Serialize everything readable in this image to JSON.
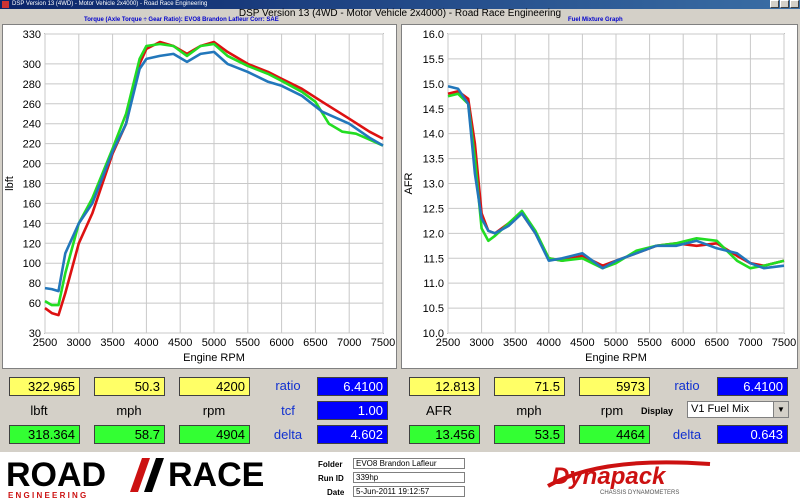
{
  "window": {
    "titlebar": "DSP Version 13 (4WD) - Motor Vehicle 2x4000) - Road Race Engineering",
    "app_title": "DSP Version 13 (4WD - Motor Vehicle 2x4000) - Road Race Engineering"
  },
  "left_graph": {
    "subtitle": "Torque (Axle Torque ÷ Gear Ratio): EVO8 Brandon Lafleur    Corr: SAE",
    "ylabel": "lbft",
    "xlabel": "Engine RPM",
    "y_ticks": [
      "330",
      "300",
      "280",
      "260",
      "240",
      "220",
      "200",
      "180",
      "160",
      "140",
      "120",
      "100",
      "80",
      "60",
      "30"
    ],
    "x_ticks": [
      "2500",
      "3000",
      "3500",
      "4000",
      "4500",
      "5000",
      "5500",
      "6000",
      "6500",
      "7000",
      "7500"
    ]
  },
  "right_graph": {
    "subtitle": "Fuel Mixture Graph",
    "ylabel": "AFR",
    "xlabel": "Engine RPM",
    "y_ticks": [
      "16.0",
      "15.5",
      "15.0",
      "14.5",
      "14.0",
      "13.5",
      "13.0",
      "12.5",
      "12.0",
      "11.5",
      "11.0",
      "10.5",
      "10.0"
    ],
    "x_ticks": [
      "2500",
      "3000",
      "3500",
      "4000",
      "4500",
      "5000",
      "5500",
      "6000",
      "6500",
      "7000",
      "7500"
    ]
  },
  "chart_data": [
    {
      "type": "line",
      "ylabel": "lbft",
      "xlabel": "Engine RPM",
      "xlim": [
        2500,
        7500
      ],
      "ylim": [
        30,
        330
      ],
      "grid": true,
      "series": [
        {
          "color": "#dd1111",
          "x": [
            2500,
            2600,
            2700,
            2800,
            3000,
            3200,
            3500,
            3700,
            3900,
            4000,
            4200,
            4400,
            4600,
            4800,
            5000,
            5200,
            5500,
            5800,
            6000,
            6300,
            6600,
            7000,
            7300,
            7500
          ],
          "y": [
            55,
            50,
            48,
            70,
            120,
            150,
            210,
            240,
            300,
            315,
            322,
            318,
            310,
            318,
            322,
            312,
            300,
            292,
            285,
            275,
            262,
            245,
            232,
            225
          ]
        },
        {
          "color": "#22dd22",
          "x": [
            2500,
            2600,
            2700,
            2800,
            3000,
            3200,
            3500,
            3700,
            3900,
            4000,
            4200,
            4400,
            4600,
            4800,
            5000,
            5200,
            5500,
            5800,
            6000,
            6300,
            6500,
            6700,
            6900,
            7100,
            7300,
            7500
          ],
          "y": [
            62,
            58,
            58,
            90,
            140,
            165,
            215,
            250,
            305,
            318,
            320,
            318,
            308,
            318,
            320,
            308,
            298,
            290,
            283,
            272,
            262,
            240,
            232,
            230,
            224,
            218
          ]
        },
        {
          "color": "#2277bb",
          "x": [
            2500,
            2600,
            2700,
            2800,
            3000,
            3200,
            3500,
            3700,
            3900,
            4000,
            4200,
            4400,
            4600,
            4800,
            5000,
            5200,
            5500,
            5800,
            6000,
            6300,
            6600,
            7000,
            7300,
            7500
          ],
          "y": [
            75,
            74,
            72,
            110,
            140,
            160,
            212,
            240,
            295,
            305,
            308,
            310,
            302,
            310,
            312,
            300,
            292,
            282,
            278,
            268,
            252,
            240,
            226,
            218
          ]
        }
      ]
    },
    {
      "type": "line",
      "ylabel": "AFR",
      "xlabel": "Engine RPM",
      "xlim": [
        2500,
        7500
      ],
      "ylim": [
        10.0,
        16.0
      ],
      "grid": true,
      "series": [
        {
          "color": "#dd1111",
          "x": [
            2500,
            2650,
            2800,
            2900,
            3000,
            3100,
            3200,
            3400,
            3600,
            3800,
            4000,
            4200,
            4500,
            4800,
            5000,
            5300,
            5600,
            5900,
            6200,
            6500,
            6800,
            7000,
            7200,
            7500
          ],
          "y": [
            14.8,
            14.85,
            14.7,
            13.8,
            12.4,
            12.05,
            12.0,
            12.2,
            12.4,
            12.0,
            11.5,
            11.45,
            11.55,
            11.35,
            11.45,
            11.6,
            11.75,
            11.8,
            11.75,
            11.8,
            11.55,
            11.4,
            11.35,
            11.45
          ]
        },
        {
          "color": "#22dd22",
          "x": [
            2500,
            2650,
            2800,
            2900,
            3000,
            3100,
            3200,
            3400,
            3600,
            3800,
            4000,
            4200,
            4500,
            4800,
            5000,
            5300,
            5600,
            5900,
            6200,
            6500,
            6800,
            7000,
            7200,
            7500
          ],
          "y": [
            14.75,
            14.8,
            14.6,
            13.5,
            12.1,
            11.85,
            11.95,
            12.2,
            12.45,
            12.05,
            11.5,
            11.45,
            11.5,
            11.3,
            11.4,
            11.65,
            11.75,
            11.8,
            11.9,
            11.85,
            11.45,
            11.3,
            11.35,
            11.45
          ]
        },
        {
          "color": "#2277bb",
          "x": [
            2500,
            2650,
            2800,
            2900,
            3000,
            3100,
            3200,
            3400,
            3600,
            3800,
            4000,
            4200,
            4500,
            4800,
            5000,
            5300,
            5600,
            5900,
            6200,
            6500,
            6800,
            7000,
            7200,
            7500
          ],
          "y": [
            14.95,
            14.9,
            14.6,
            13.2,
            12.3,
            12.05,
            12.0,
            12.15,
            12.4,
            12.0,
            11.45,
            11.5,
            11.6,
            11.3,
            11.45,
            11.6,
            11.75,
            11.75,
            11.85,
            11.7,
            11.6,
            11.4,
            11.3,
            11.35
          ]
        }
      ]
    }
  ],
  "left_readout": {
    "top": [
      "322.965",
      "50.3",
      "4200"
    ],
    "units": [
      "lbft",
      "mph",
      "rpm"
    ],
    "bottom": [
      "318.364",
      "58.7",
      "4904"
    ],
    "ratio_label": "ratio",
    "ratio_value": "6.4100",
    "tcf_label": "tcf",
    "tcf_value": "1.00",
    "delta_label": "delta",
    "delta_value": "4.602"
  },
  "right_readout": {
    "top": [
      "12.813",
      "71.5",
      "5973"
    ],
    "units": [
      "AFR",
      "mph",
      "rpm"
    ],
    "bottom": [
      "13.456",
      "53.5",
      "4464"
    ],
    "ratio_label": "ratio",
    "ratio_value": "6.4100",
    "display_label": "Display",
    "display_value": "V1 Fuel Mix",
    "delta_label": "delta",
    "delta_value": "0.643"
  },
  "footer": {
    "logo_road": "ROAD",
    "logo_race": "RACE",
    "logo_sub": "E N G I N E E R I N G",
    "folder_label": "Folder",
    "folder_value": "EVO8 Brandon Lafleur",
    "runid_label": "Run ID",
    "runid_value": "339hp",
    "date_label": "Date",
    "date_value": "5-Jun-2011 19:12:57",
    "brand": "Dynapack",
    "brand_sub": "CHASSIS DYNAMOMETERS"
  },
  "colors": {
    "accent_red": "#dd1111",
    "accent_green": "#22dd22",
    "accent_blue": "#2277bb"
  }
}
